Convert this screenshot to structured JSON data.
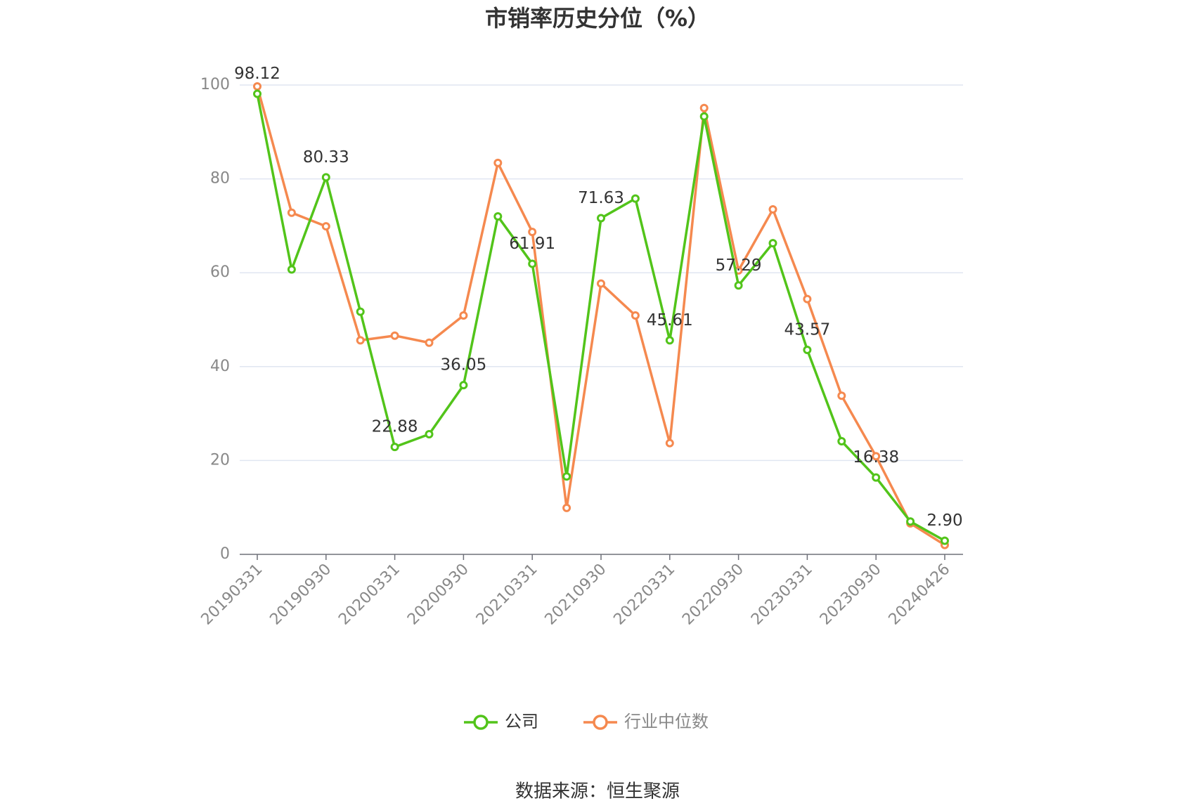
{
  "chart_data": {
    "type": "line",
    "title": "市销率历史分位（%）",
    "categories": [
      "20190331",
      null,
      "20190930",
      null,
      "20200331",
      null,
      "20200930",
      null,
      "20210331",
      null,
      "20210930",
      null,
      "20220331",
      null,
      "20220930",
      null,
      "20230331",
      null,
      "20230930",
      null,
      "20240426"
    ],
    "series": [
      {
        "name": "公司",
        "color": "#52c41a",
        "values": [
          98.12,
          60.7,
          80.33,
          51.7,
          22.88,
          25.6,
          36.05,
          72.0,
          61.91,
          16.6,
          71.63,
          75.8,
          45.61,
          93.3,
          57.29,
          66.3,
          43.57,
          24.1,
          16.38,
          7.0,
          2.9
        ],
        "value_labels": [
          "98.12",
          null,
          "80.33",
          null,
          "22.88",
          null,
          "36.05",
          null,
          "61.91",
          null,
          "71.63",
          null,
          "45.61",
          null,
          "57.29",
          null,
          "43.57",
          null,
          "16.38",
          null,
          "2.90"
        ]
      },
      {
        "name": "行业中位数",
        "color": "#f5894f",
        "values": [
          99.7,
          72.8,
          69.9,
          45.6,
          46.6,
          45.1,
          50.9,
          83.4,
          68.7,
          9.9,
          57.7,
          50.9,
          23.7,
          95.1,
          60.5,
          73.5,
          54.4,
          33.8,
          20.9,
          6.6,
          2.0
        ]
      }
    ],
    "ylim": [
      0,
      100
    ],
    "yticks": [
      0,
      20,
      40,
      60,
      80,
      100
    ],
    "grid": true,
    "source": "数据来源：恒生聚源"
  }
}
